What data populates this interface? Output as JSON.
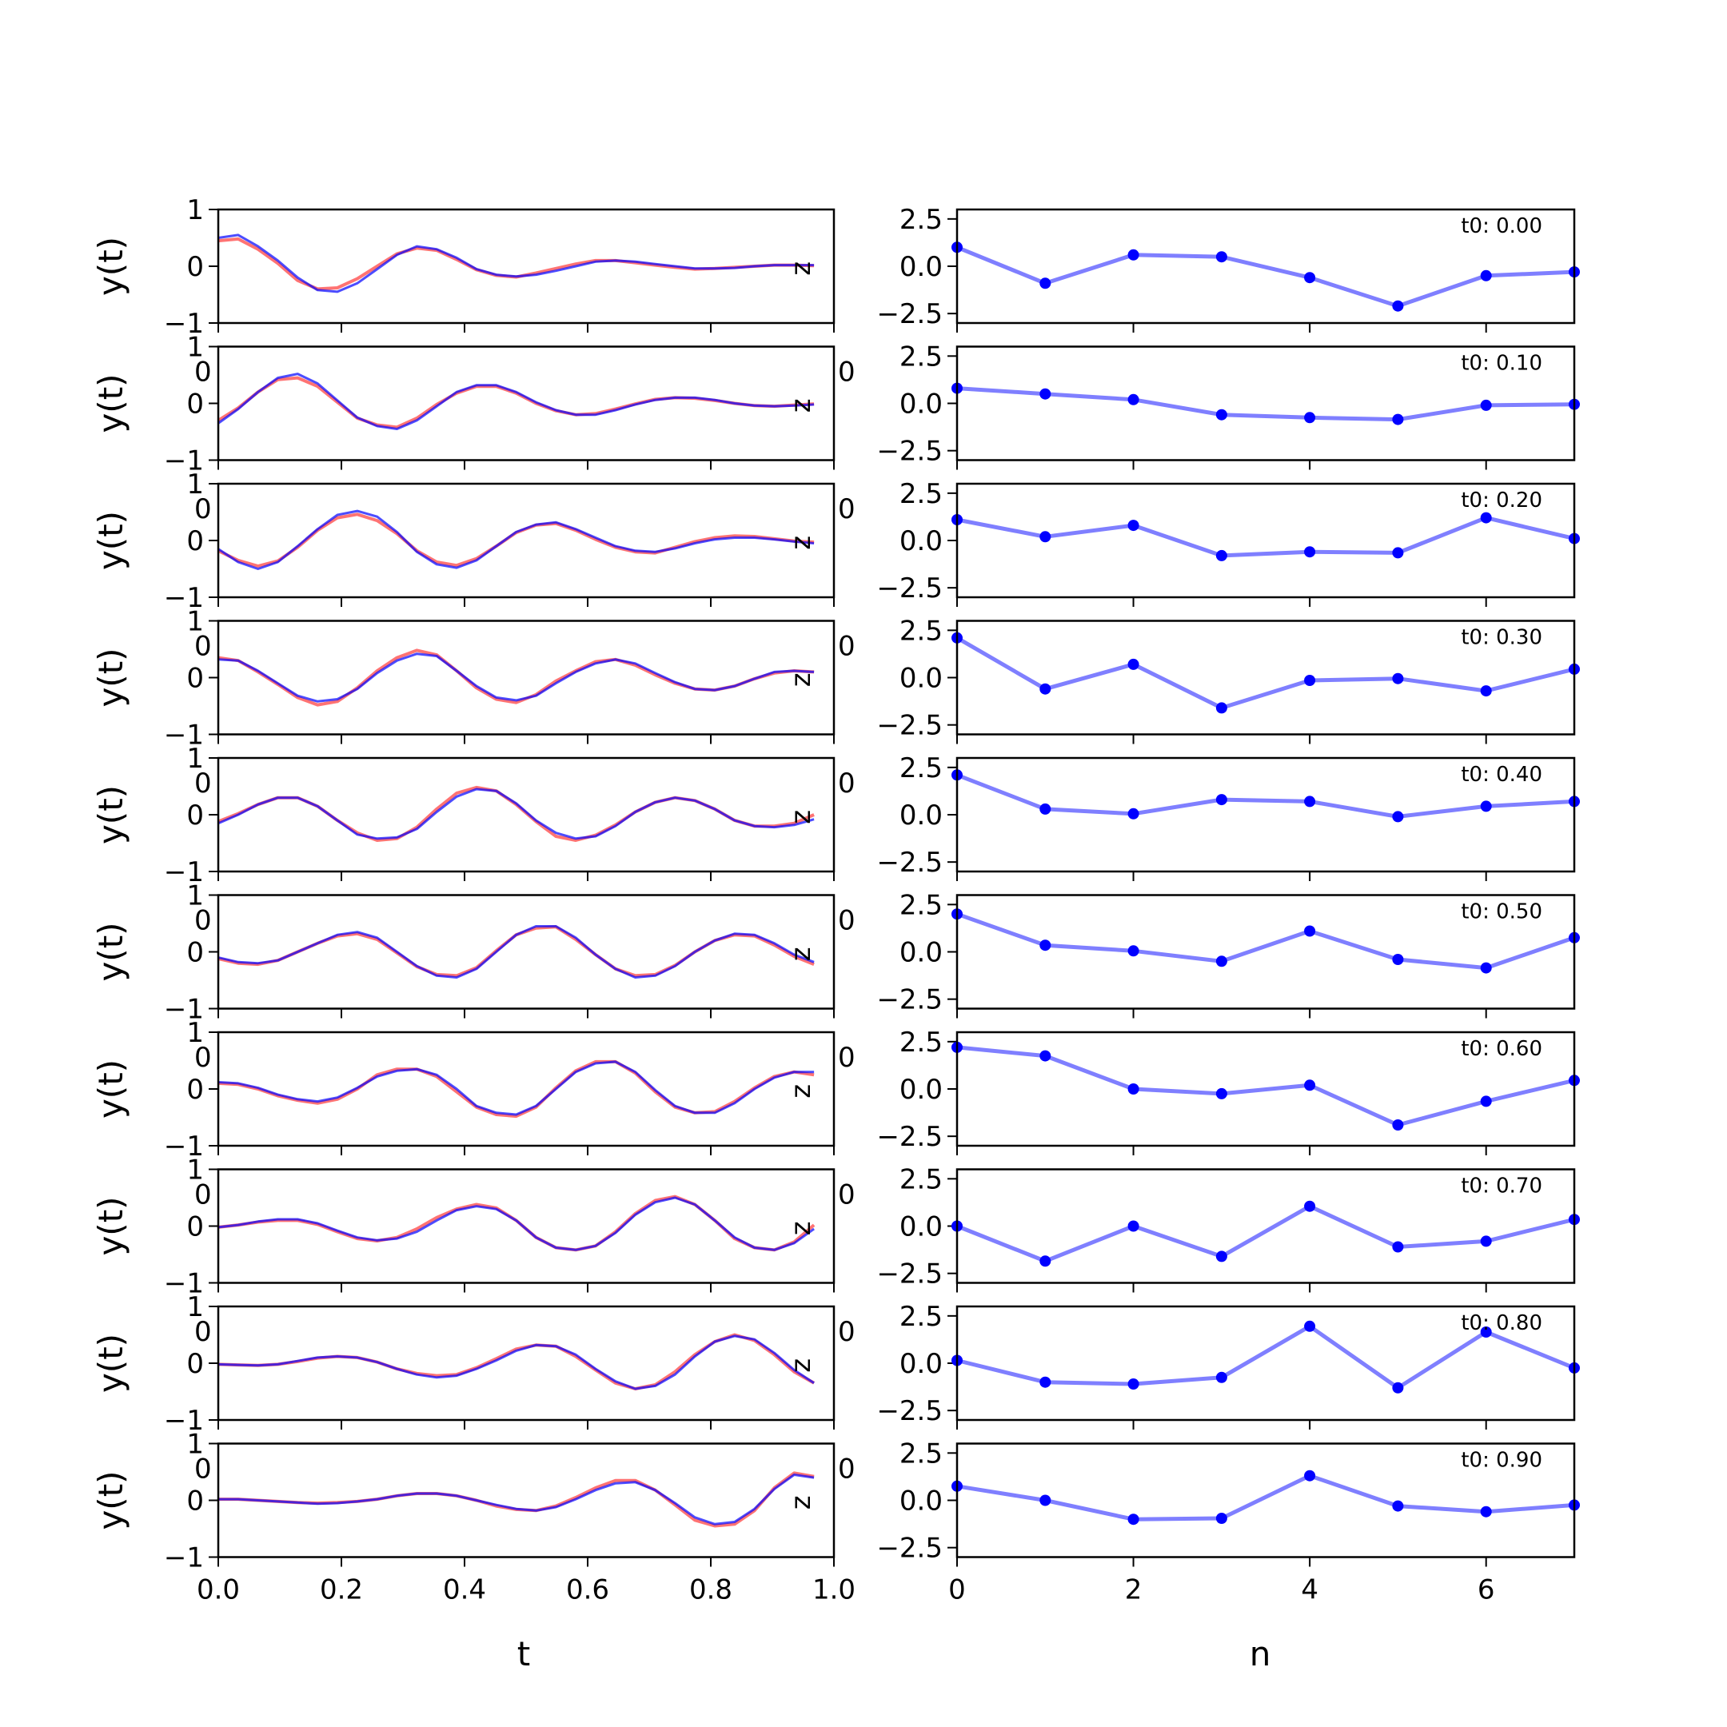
{
  "chart_data": [
    {
      "type": "line",
      "panel": "left",
      "ylabel": "y(t)",
      "xlabel": "t",
      "side_label": "z",
      "xlim": [
        0,
        1
      ],
      "ylim": [
        -1,
        1
      ],
      "xticks": [
        "0.0",
        "0.2",
        "0.4",
        "0.6",
        "0.8",
        "1.0"
      ],
      "yticks": [
        "1",
        "0",
        "−1"
      ],
      "row_overlap_label": "0",
      "t": [
        0.0,
        0.0323,
        0.0645,
        0.0968,
        0.129,
        0.1613,
        0.1935,
        0.2258,
        0.2581,
        0.2903,
        0.3226,
        0.3548,
        0.3871,
        0.4194,
        0.4516,
        0.4839,
        0.5161,
        0.5484,
        0.5806,
        0.6129,
        0.6452,
        0.6774,
        0.7097,
        0.7419,
        0.7742,
        0.8065,
        0.8387,
        0.871,
        0.9032,
        0.9355,
        0.9677
      ],
      "series_colors": {
        "true": "#ff0000",
        "pred": "#0000ff"
      },
      "rows": [
        {
          "pred": [
            0.5,
            0.55,
            0.35,
            0.1,
            -0.2,
            -0.42,
            -0.45,
            -0.3,
            -0.05,
            0.2,
            0.35,
            0.3,
            0.15,
            -0.05,
            -0.15,
            -0.18,
            -0.15,
            -0.08,
            0.0,
            0.08,
            0.1,
            0.08,
            0.04,
            0.0,
            -0.04,
            -0.04,
            -0.03,
            0.0,
            0.02,
            0.02,
            0.02
          ],
          "true": [
            0.45,
            0.48,
            0.3,
            0.05,
            -0.25,
            -0.4,
            -0.38,
            -0.22,
            0.0,
            0.22,
            0.32,
            0.28,
            0.12,
            -0.06,
            -0.16,
            -0.19,
            -0.12,
            -0.04,
            0.04,
            0.1,
            0.1,
            0.06,
            0.02,
            -0.02,
            -0.05,
            -0.04,
            -0.02,
            0.0,
            0.02,
            0.02,
            0.01
          ]
        },
        {
          "pred": [
            -0.35,
            -0.1,
            0.2,
            0.45,
            0.52,
            0.35,
            0.05,
            -0.25,
            -0.4,
            -0.45,
            -0.3,
            -0.05,
            0.2,
            0.32,
            0.32,
            0.2,
            0.02,
            -0.12,
            -0.2,
            -0.2,
            -0.12,
            -0.02,
            0.06,
            0.1,
            0.1,
            0.06,
            0.0,
            -0.04,
            -0.05,
            -0.04,
            -0.02
          ],
          "true": [
            -0.3,
            -0.08,
            0.2,
            0.42,
            0.45,
            0.3,
            0.02,
            -0.26,
            -0.38,
            -0.42,
            -0.26,
            -0.02,
            0.18,
            0.3,
            0.3,
            0.18,
            0.0,
            -0.13,
            -0.2,
            -0.18,
            -0.1,
            -0.01,
            0.07,
            0.1,
            0.09,
            0.05,
            0.0,
            -0.04,
            -0.05,
            -0.03,
            -0.01
          ]
        },
        {
          "pred": [
            -0.15,
            -0.38,
            -0.5,
            -0.38,
            -0.1,
            0.2,
            0.45,
            0.52,
            0.42,
            0.15,
            -0.2,
            -0.42,
            -0.48,
            -0.35,
            -0.1,
            0.15,
            0.28,
            0.32,
            0.2,
            0.05,
            -0.1,
            -0.18,
            -0.2,
            -0.14,
            -0.05,
            0.02,
            0.05,
            0.05,
            0.02,
            -0.02,
            -0.05
          ],
          "true": [
            -0.18,
            -0.35,
            -0.45,
            -0.36,
            -0.12,
            0.18,
            0.4,
            0.46,
            0.35,
            0.12,
            -0.18,
            -0.38,
            -0.44,
            -0.32,
            -0.1,
            0.14,
            0.27,
            0.3,
            0.18,
            0.02,
            -0.12,
            -0.2,
            -0.22,
            -0.12,
            -0.02,
            0.05,
            0.08,
            0.07,
            0.03,
            -0.01,
            -0.03
          ]
        },
        {
          "pred": [
            0.32,
            0.3,
            0.12,
            -0.1,
            -0.32,
            -0.42,
            -0.38,
            -0.2,
            0.08,
            0.3,
            0.42,
            0.38,
            0.12,
            -0.15,
            -0.35,
            -0.4,
            -0.32,
            -0.1,
            0.1,
            0.25,
            0.32,
            0.25,
            0.08,
            -0.08,
            -0.2,
            -0.22,
            -0.15,
            -0.02,
            0.1,
            0.12,
            0.1
          ],
          "true": [
            0.35,
            0.3,
            0.1,
            -0.12,
            -0.35,
            -0.48,
            -0.42,
            -0.18,
            0.12,
            0.35,
            0.48,
            0.4,
            0.12,
            -0.18,
            -0.38,
            -0.44,
            -0.3,
            -0.06,
            0.12,
            0.28,
            0.32,
            0.22,
            0.05,
            -0.1,
            -0.2,
            -0.22,
            -0.15,
            -0.02,
            0.08,
            0.12,
            0.1
          ]
        },
        {
          "pred": [
            -0.15,
            0.0,
            0.18,
            0.3,
            0.3,
            0.15,
            -0.1,
            -0.35,
            -0.42,
            -0.4,
            -0.25,
            0.05,
            0.32,
            0.45,
            0.42,
            0.2,
            -0.1,
            -0.32,
            -0.42,
            -0.38,
            -0.2,
            0.05,
            0.22,
            0.3,
            0.25,
            0.1,
            -0.1,
            -0.2,
            -0.22,
            -0.18,
            -0.08
          ],
          "true": [
            -0.12,
            0.02,
            0.18,
            0.3,
            0.3,
            0.15,
            -0.1,
            -0.32,
            -0.45,
            -0.42,
            -0.22,
            0.1,
            0.38,
            0.48,
            0.42,
            0.18,
            -0.12,
            -0.38,
            -0.45,
            -0.36,
            -0.18,
            0.05,
            0.22,
            0.3,
            0.25,
            0.1,
            -0.1,
            -0.2,
            -0.2,
            -0.15,
            0.0
          ]
        },
        {
          "pred": [
            -0.1,
            -0.18,
            -0.2,
            -0.15,
            0.0,
            0.15,
            0.3,
            0.35,
            0.25,
            0.0,
            -0.25,
            -0.42,
            -0.45,
            -0.3,
            0.0,
            0.3,
            0.45,
            0.45,
            0.25,
            -0.05,
            -0.3,
            -0.45,
            -0.42,
            -0.25,
            0.0,
            0.2,
            0.32,
            0.3,
            0.15,
            -0.05,
            -0.18
          ],
          "true": [
            -0.12,
            -0.2,
            -0.22,
            -0.15,
            0.0,
            0.15,
            0.28,
            0.32,
            0.22,
            -0.02,
            -0.26,
            -0.4,
            -0.42,
            -0.28,
            0.02,
            0.3,
            0.42,
            0.44,
            0.22,
            -0.05,
            -0.3,
            -0.42,
            -0.4,
            -0.24,
            0.0,
            0.2,
            0.3,
            0.28,
            0.12,
            -0.08,
            -0.22
          ]
        },
        {
          "pred": [
            0.12,
            0.1,
            0.02,
            -0.1,
            -0.18,
            -0.22,
            -0.15,
            0.02,
            0.22,
            0.32,
            0.35,
            0.25,
            0.0,
            -0.3,
            -0.42,
            -0.45,
            -0.3,
            0.0,
            0.3,
            0.45,
            0.48,
            0.3,
            -0.02,
            -0.3,
            -0.42,
            -0.42,
            -0.25,
            0.0,
            0.2,
            0.3,
            0.3
          ],
          "true": [
            0.1,
            0.08,
            0.0,
            -0.12,
            -0.2,
            -0.25,
            -0.18,
            0.0,
            0.25,
            0.35,
            0.35,
            0.22,
            -0.05,
            -0.32,
            -0.45,
            -0.48,
            -0.32,
            0.02,
            0.32,
            0.48,
            0.48,
            0.28,
            -0.05,
            -0.32,
            -0.42,
            -0.4,
            -0.22,
            0.02,
            0.22,
            0.3,
            0.25
          ]
        },
        {
          "pred": [
            -0.02,
            0.02,
            0.08,
            0.12,
            0.12,
            0.05,
            -0.08,
            -0.2,
            -0.25,
            -0.22,
            -0.1,
            0.1,
            0.28,
            0.35,
            0.3,
            0.1,
            -0.2,
            -0.38,
            -0.42,
            -0.35,
            -0.12,
            0.2,
            0.42,
            0.5,
            0.38,
            0.1,
            -0.2,
            -0.38,
            -0.42,
            -0.3,
            -0.05
          ],
          "true": [
            -0.02,
            0.02,
            0.07,
            0.1,
            0.1,
            0.03,
            -0.1,
            -0.22,
            -0.26,
            -0.2,
            -0.05,
            0.15,
            0.3,
            0.38,
            0.32,
            0.1,
            -0.2,
            -0.38,
            -0.42,
            -0.35,
            -0.1,
            0.22,
            0.45,
            0.52,
            0.38,
            0.1,
            -0.22,
            -0.38,
            -0.42,
            -0.28,
            0.02
          ]
        },
        {
          "pred": [
            -0.02,
            -0.03,
            -0.04,
            -0.02,
            0.04,
            0.1,
            0.12,
            0.1,
            0.02,
            -0.1,
            -0.2,
            -0.25,
            -0.22,
            -0.1,
            0.05,
            0.22,
            0.32,
            0.3,
            0.15,
            -0.1,
            -0.32,
            -0.45,
            -0.4,
            -0.2,
            0.12,
            0.38,
            0.48,
            0.42,
            0.18,
            -0.12,
            -0.35
          ],
          "true": [
            -0.02,
            -0.03,
            -0.04,
            -0.02,
            0.03,
            0.09,
            0.12,
            0.1,
            0.02,
            -0.1,
            -0.18,
            -0.22,
            -0.2,
            -0.08,
            0.08,
            0.25,
            0.32,
            0.3,
            0.12,
            -0.12,
            -0.35,
            -0.45,
            -0.38,
            -0.15,
            0.15,
            0.38,
            0.5,
            0.4,
            0.15,
            -0.15,
            -0.35
          ]
        },
        {
          "pred": [
            0.02,
            0.02,
            0.0,
            -0.02,
            -0.04,
            -0.06,
            -0.05,
            -0.02,
            0.02,
            0.08,
            0.12,
            0.12,
            0.08,
            0.0,
            -0.08,
            -0.15,
            -0.18,
            -0.12,
            0.02,
            0.18,
            0.3,
            0.32,
            0.18,
            -0.05,
            -0.3,
            -0.42,
            -0.38,
            -0.15,
            0.2,
            0.45,
            0.4
          ],
          "true": [
            0.02,
            0.02,
            0.0,
            -0.02,
            -0.04,
            -0.05,
            -0.04,
            -0.02,
            0.02,
            0.08,
            0.12,
            0.12,
            0.08,
            0.0,
            -0.1,
            -0.16,
            -0.18,
            -0.1,
            0.05,
            0.22,
            0.35,
            0.35,
            0.18,
            -0.08,
            -0.35,
            -0.45,
            -0.42,
            -0.18,
            0.22,
            0.48,
            0.42
          ]
        }
      ]
    },
    {
      "type": "line",
      "panel": "right",
      "xlabel": "n",
      "xlim": [
        0,
        7
      ],
      "ylim": [
        -3,
        3
      ],
      "xticks": [
        "0",
        "2",
        "4",
        "6"
      ],
      "yticks": [
        "2.5",
        "0.0",
        "−2.5"
      ],
      "row_overlap_label": "0",
      "n": [
        0,
        1,
        2,
        3,
        4,
        5,
        6,
        7
      ],
      "series_color": "#0000ff",
      "rows": [
        {
          "t0": "t0: 0.00",
          "values": [
            1.0,
            -0.9,
            0.6,
            0.5,
            -0.6,
            -2.1,
            -0.5,
            -0.3
          ]
        },
        {
          "t0": "t0: 0.10",
          "values": [
            0.8,
            0.5,
            0.2,
            -0.6,
            -0.75,
            -0.85,
            -0.1,
            -0.05
          ]
        },
        {
          "t0": "t0: 0.20",
          "values": [
            1.1,
            0.2,
            0.8,
            -0.8,
            -0.6,
            -0.65,
            1.2,
            0.1
          ]
        },
        {
          "t0": "t0: 0.30",
          "values": [
            2.1,
            -0.6,
            0.7,
            -1.6,
            -0.15,
            -0.05,
            -0.7,
            0.45
          ]
        },
        {
          "t0": "t0: 0.40",
          "values": [
            2.1,
            0.3,
            0.05,
            0.8,
            0.7,
            -0.1,
            0.45,
            0.7
          ]
        },
        {
          "t0": "t0: 0.50",
          "values": [
            2.0,
            0.35,
            0.05,
            -0.5,
            1.1,
            -0.4,
            -0.85,
            0.75
          ]
        },
        {
          "t0": "t0: 0.60",
          "values": [
            2.2,
            1.75,
            0.0,
            -0.25,
            0.2,
            -1.9,
            -0.65,
            0.45
          ]
        },
        {
          "t0": "t0: 0.70",
          "values": [
            0.0,
            -1.85,
            0.0,
            -1.6,
            1.05,
            -1.1,
            -0.8,
            0.35
          ]
        },
        {
          "t0": "t0: 0.80",
          "values": [
            0.15,
            -1.0,
            -1.1,
            -0.75,
            1.95,
            -1.3,
            1.65,
            -0.25
          ]
        },
        {
          "t0": "t0: 0.90",
          "values": [
            0.75,
            0.0,
            -1.0,
            -0.95,
            1.3,
            -0.3,
            -0.6,
            -0.25
          ]
        }
      ]
    }
  ]
}
